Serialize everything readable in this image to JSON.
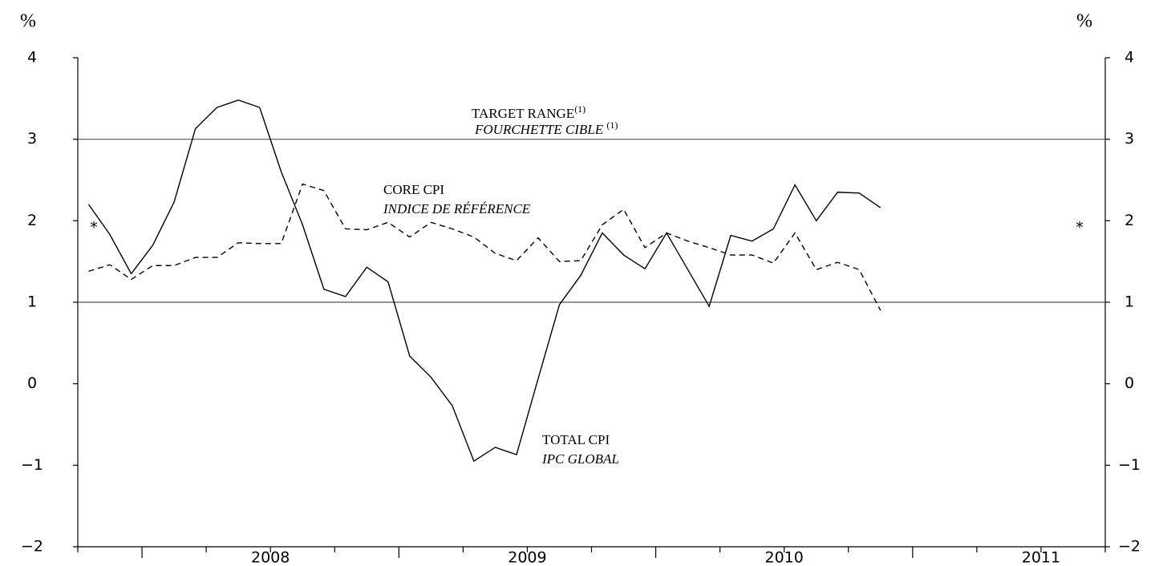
{
  "chart_data": {
    "type": "line",
    "y_unit": "%",
    "x": [
      2007.792,
      2007.875,
      2007.958,
      2008.042,
      2008.125,
      2008.208,
      2008.292,
      2008.375,
      2008.458,
      2008.542,
      2008.625,
      2008.708,
      2008.792,
      2008.875,
      2008.958,
      2009.042,
      2009.125,
      2009.208,
      2009.292,
      2009.375,
      2009.458,
      2009.542,
      2009.625,
      2009.708,
      2009.792,
      2009.875,
      2009.958,
      2010.042,
      2010.125,
      2010.208,
      2010.292,
      2010.375,
      2010.458,
      2010.542,
      2010.625,
      2010.708,
      2010.792,
      2010.875
    ],
    "series": [
      {
        "name": "TOTAL CPI",
        "name_fr": "IPC GLOBAL",
        "color": "#000000",
        "dash": false,
        "values": [
          2.2,
          1.83,
          1.35,
          1.7,
          2.23,
          3.13,
          3.39,
          3.48,
          3.39,
          2.6,
          1.95,
          1.16,
          1.07,
          1.43,
          1.25,
          0.34,
          0.08,
          -0.27,
          -0.95,
          -0.78,
          -0.87,
          0.06,
          0.97,
          1.33,
          1.85,
          1.58,
          1.41,
          1.85,
          1.4,
          0.95,
          1.82,
          1.75,
          1.9,
          2.44,
          2.0,
          2.35,
          2.34,
          2.16
        ]
      },
      {
        "name": "CORE CPI",
        "name_fr": "INDICE DE RÉFÉRENCE",
        "color": "#000000",
        "dash": true,
        "values": [
          1.38,
          1.46,
          1.28,
          1.45,
          1.45,
          1.55,
          1.55,
          1.73,
          1.72,
          1.72,
          2.45,
          2.37,
          1.9,
          1.89,
          1.98,
          1.8,
          1.98,
          1.9,
          1.8,
          1.6,
          1.51,
          1.79,
          1.5,
          1.51,
          1.95,
          2.14,
          1.67,
          1.85,
          1.75,
          1.67,
          1.58,
          1.58,
          1.48,
          1.85,
          1.4,
          1.49,
          1.4,
          0.9
        ]
      }
    ],
    "target_range": [
      1,
      3
    ],
    "target_label": "TARGET RANGE",
    "target_label_fr": "FOURCHETTE CIBLE ",
    "target_note": "(1)",
    "target_midpoint": {
      "value": 2,
      "label": "*"
    },
    "xlim": [
      2007.75,
      2011.75
    ],
    "xticks": [
      {
        "value": 2008.5,
        "label": "2008"
      },
      {
        "value": 2009.5,
        "label": "2009"
      },
      {
        "value": 2010.5,
        "label": "2010"
      },
      {
        "value": 2011.5,
        "label": "2011"
      }
    ],
    "ylim": [
      -2,
      4
    ],
    "yticks": [
      {
        "value": -2,
        "label": "−2"
      },
      {
        "value": -1,
        "label": "−1"
      },
      0,
      1,
      2,
      3,
      4
    ],
    "y2lim": [
      -2,
      4
    ],
    "y2ticks": [
      {
        "value": -2,
        "label": "−2"
      },
      {
        "value": -1,
        "label": "−1"
      },
      0,
      1,
      2,
      3,
      4
    ]
  }
}
